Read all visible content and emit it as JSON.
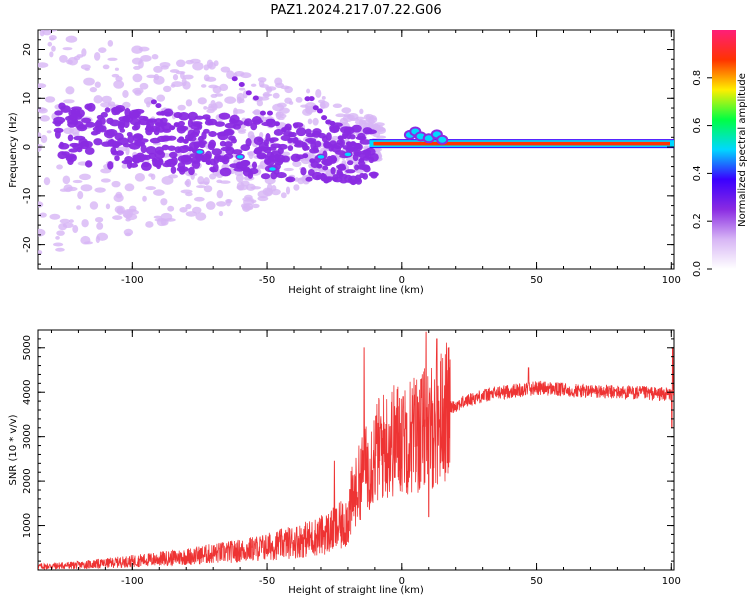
{
  "title": "PAZ1.2024.217.07.22.G06",
  "colors": {
    "snr_line": "#ee3333",
    "colormap": [
      "#ffffff",
      "#d7b5f5",
      "#8a2be2",
      "#3a00ff",
      "#00d8ff",
      "#00ff44",
      "#ffee00",
      "#ff3300",
      "#ff1e78"
    ]
  },
  "chart_data": [
    {
      "type": "heatmap",
      "xlabel": "Height of straight line (km)",
      "ylabel": "Frequency (Hz)",
      "xlim": [
        -135,
        101
      ],
      "ylim": [
        -25,
        24
      ],
      "xticks": [
        -100,
        -50,
        0,
        50,
        100
      ],
      "xtick_labels": [
        "-100",
        "-50",
        "0",
        "50",
        "100"
      ],
      "yticks": [
        -20,
        -10,
        0,
        10,
        20
      ],
      "ytick_labels": [
        "-20",
        "-10",
        "0",
        "10",
        "20"
      ],
      "grid": false,
      "colorbar": {
        "label": "Normalized spectral amplitude",
        "range": [
          0,
          1
        ],
        "ticks": [
          0.0,
          0.2,
          0.4,
          0.6,
          0.8
        ],
        "tick_labels": [
          "0.0",
          "0.2",
          "0.4",
          "0.6",
          "0.8"
        ]
      },
      "features": {
        "carrier_line": {
          "frequency_hz": 0.7,
          "x_start_km": -12,
          "x_end_km": 101,
          "amplitude": 0.85
        },
        "scatter_region": {
          "x_range_km": [
            -135,
            -15
          ],
          "freq_range_hz": [
            -25,
            24
          ],
          "amplitude": 0.3
        }
      }
    },
    {
      "type": "line",
      "xlabel": "Height of straight line (km)",
      "ylabel": "SNR (10 * v/v)",
      "xlim": [
        -135,
        101
      ],
      "ylim": [
        0,
        5400
      ],
      "xticks": [
        -100,
        -50,
        0,
        50,
        100
      ],
      "xtick_labels": [
        "-100",
        "-50",
        "0",
        "50",
        "100"
      ],
      "yticks": [
        1000,
        2000,
        3000,
        4000,
        5000
      ],
      "ytick_labels": [
        "1000",
        "2000",
        "3000",
        "4000",
        "5000"
      ],
      "grid": false,
      "series": [
        {
          "x": [
            -135,
            -120,
            -110,
            -100,
            -90,
            -80,
            -70,
            -60,
            -50,
            -45,
            -40,
            -35,
            -30,
            -25,
            -22,
            -20,
            -18,
            -15,
            -12,
            -10,
            -8,
            -5,
            -2,
            0,
            3,
            6,
            8,
            10,
            12,
            14,
            16,
            18,
            20,
            23,
            26,
            30,
            35,
            40,
            45,
            50,
            55,
            60,
            70,
            80,
            90,
            95,
            100,
            101
          ],
          "y": [
            80,
            110,
            150,
            200,
            250,
            300,
            370,
            430,
            520,
            580,
            640,
            700,
            780,
            900,
            1000,
            1200,
            1600,
            2100,
            2400,
            2600,
            2750,
            2850,
            2950,
            3000,
            3050,
            3100,
            3150,
            3200,
            3250,
            3400,
            3550,
            3650,
            3700,
            3780,
            3850,
            3920,
            3980,
            4020,
            4060,
            4100,
            4080,
            4050,
            4020,
            4000,
            3980,
            3960,
            3950,
            3900
          ],
          "spikes": [
            {
              "x": -14,
              "y": 5000
            },
            {
              "x": -25,
              "y": 2450
            },
            {
              "x": 9,
              "y": 5350
            },
            {
              "x": 13,
              "y": 5200
            },
            {
              "x": 10,
              "y": 1200
            },
            {
              "x": 0.5,
              "y": 3900
            },
            {
              "x": 47,
              "y": 4550
            },
            {
              "x": 100.5,
              "y": 5000
            },
            {
              "x": 100.2,
              "y": 3200
            }
          ]
        }
      ]
    }
  ]
}
